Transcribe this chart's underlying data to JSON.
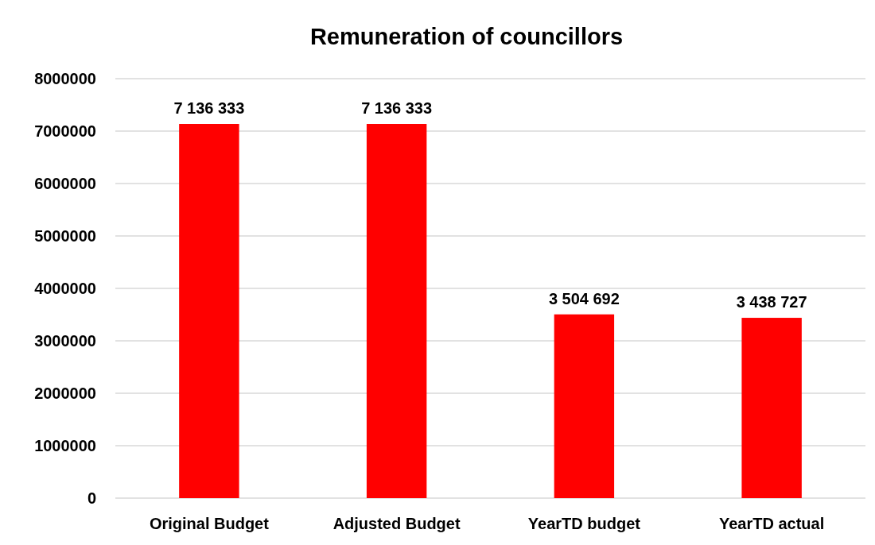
{
  "chart_data": {
    "type": "bar",
    "title": "Remuneration of councillors",
    "categories": [
      "Original Budget",
      "Adjusted Budget",
      "YearTD budget",
      "YearTD actual"
    ],
    "values": [
      7136333,
      7136333,
      3504692,
      3438727
    ],
    "value_labels": [
      "7 136 333",
      "7 136 333",
      "3 504 692",
      "3 438 727"
    ],
    "color": "#ff0000",
    "ylim": [
      0,
      8000000
    ],
    "yticks": [
      0,
      1000000,
      2000000,
      3000000,
      4000000,
      5000000,
      6000000,
      7000000,
      8000000
    ],
    "grid": "y"
  }
}
